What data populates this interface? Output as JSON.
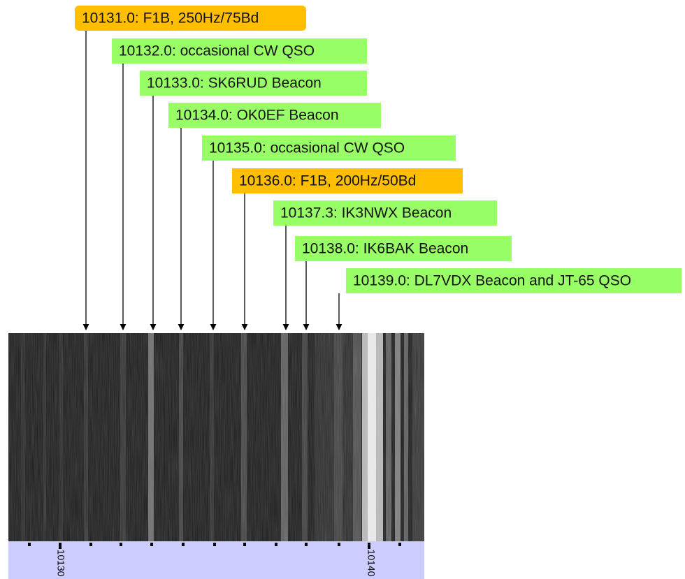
{
  "labels": [
    {
      "text": "10131.0: F1B, 250Hz/75Bd"
    },
    {
      "text": "10132.0: occasional CW QSO"
    },
    {
      "text": "10133.0: SK6RUD Beacon"
    },
    {
      "text": "10134.0: OK0EF Beacon"
    },
    {
      "text": "10135.0: occasional CW QSO"
    },
    {
      "text": "10136.0: F1B, 200Hz/50Bd"
    },
    {
      "text": "10137.3: IK3NWX Beacon"
    },
    {
      "text": "10138.0: IK6BAK Beacon"
    },
    {
      "text": "10139.0: DL7VDX Beacon and JT-65 QSO"
    }
  ],
  "scale": {
    "labels": [
      "10130",
      "10140"
    ]
  }
}
